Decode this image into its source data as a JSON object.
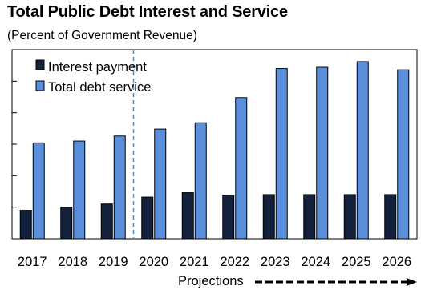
{
  "header": {
    "title": "Total Public Debt Interest and Service",
    "subtitle": "(Percent of Government Revenue)"
  },
  "projections_label": "Projections",
  "colors": {
    "interest": "#14213d",
    "debt_service": "#5b8fd9",
    "bar_outline": "#000000",
    "divider": "#4a8fbf"
  },
  "chart_data": {
    "type": "bar",
    "title": "Total Public Debt Interest and Service",
    "subtitle": "(Percent of Government Revenue)",
    "categories": [
      "2017",
      "2018",
      "2019",
      "2020",
      "2021",
      "2022",
      "2023",
      "2024",
      "2025",
      "2026"
    ],
    "series": [
      {
        "name": "Interest payment",
        "values": [
          4.5,
          5.0,
          5.5,
          6.6,
          7.3,
          6.9,
          7.0,
          7.0,
          7.0,
          7.0
        ]
      },
      {
        "name": "Total debt service",
        "values": [
          15.2,
          15.5,
          16.3,
          17.4,
          18.4,
          22.4,
          27.0,
          27.2,
          28.1,
          26.8
        ]
      }
    ],
    "ylim": [
      0,
      30
    ],
    "y_tick_labels_shown": false,
    "grid": false,
    "legend": "top-left",
    "projection_start": "2020"
  }
}
